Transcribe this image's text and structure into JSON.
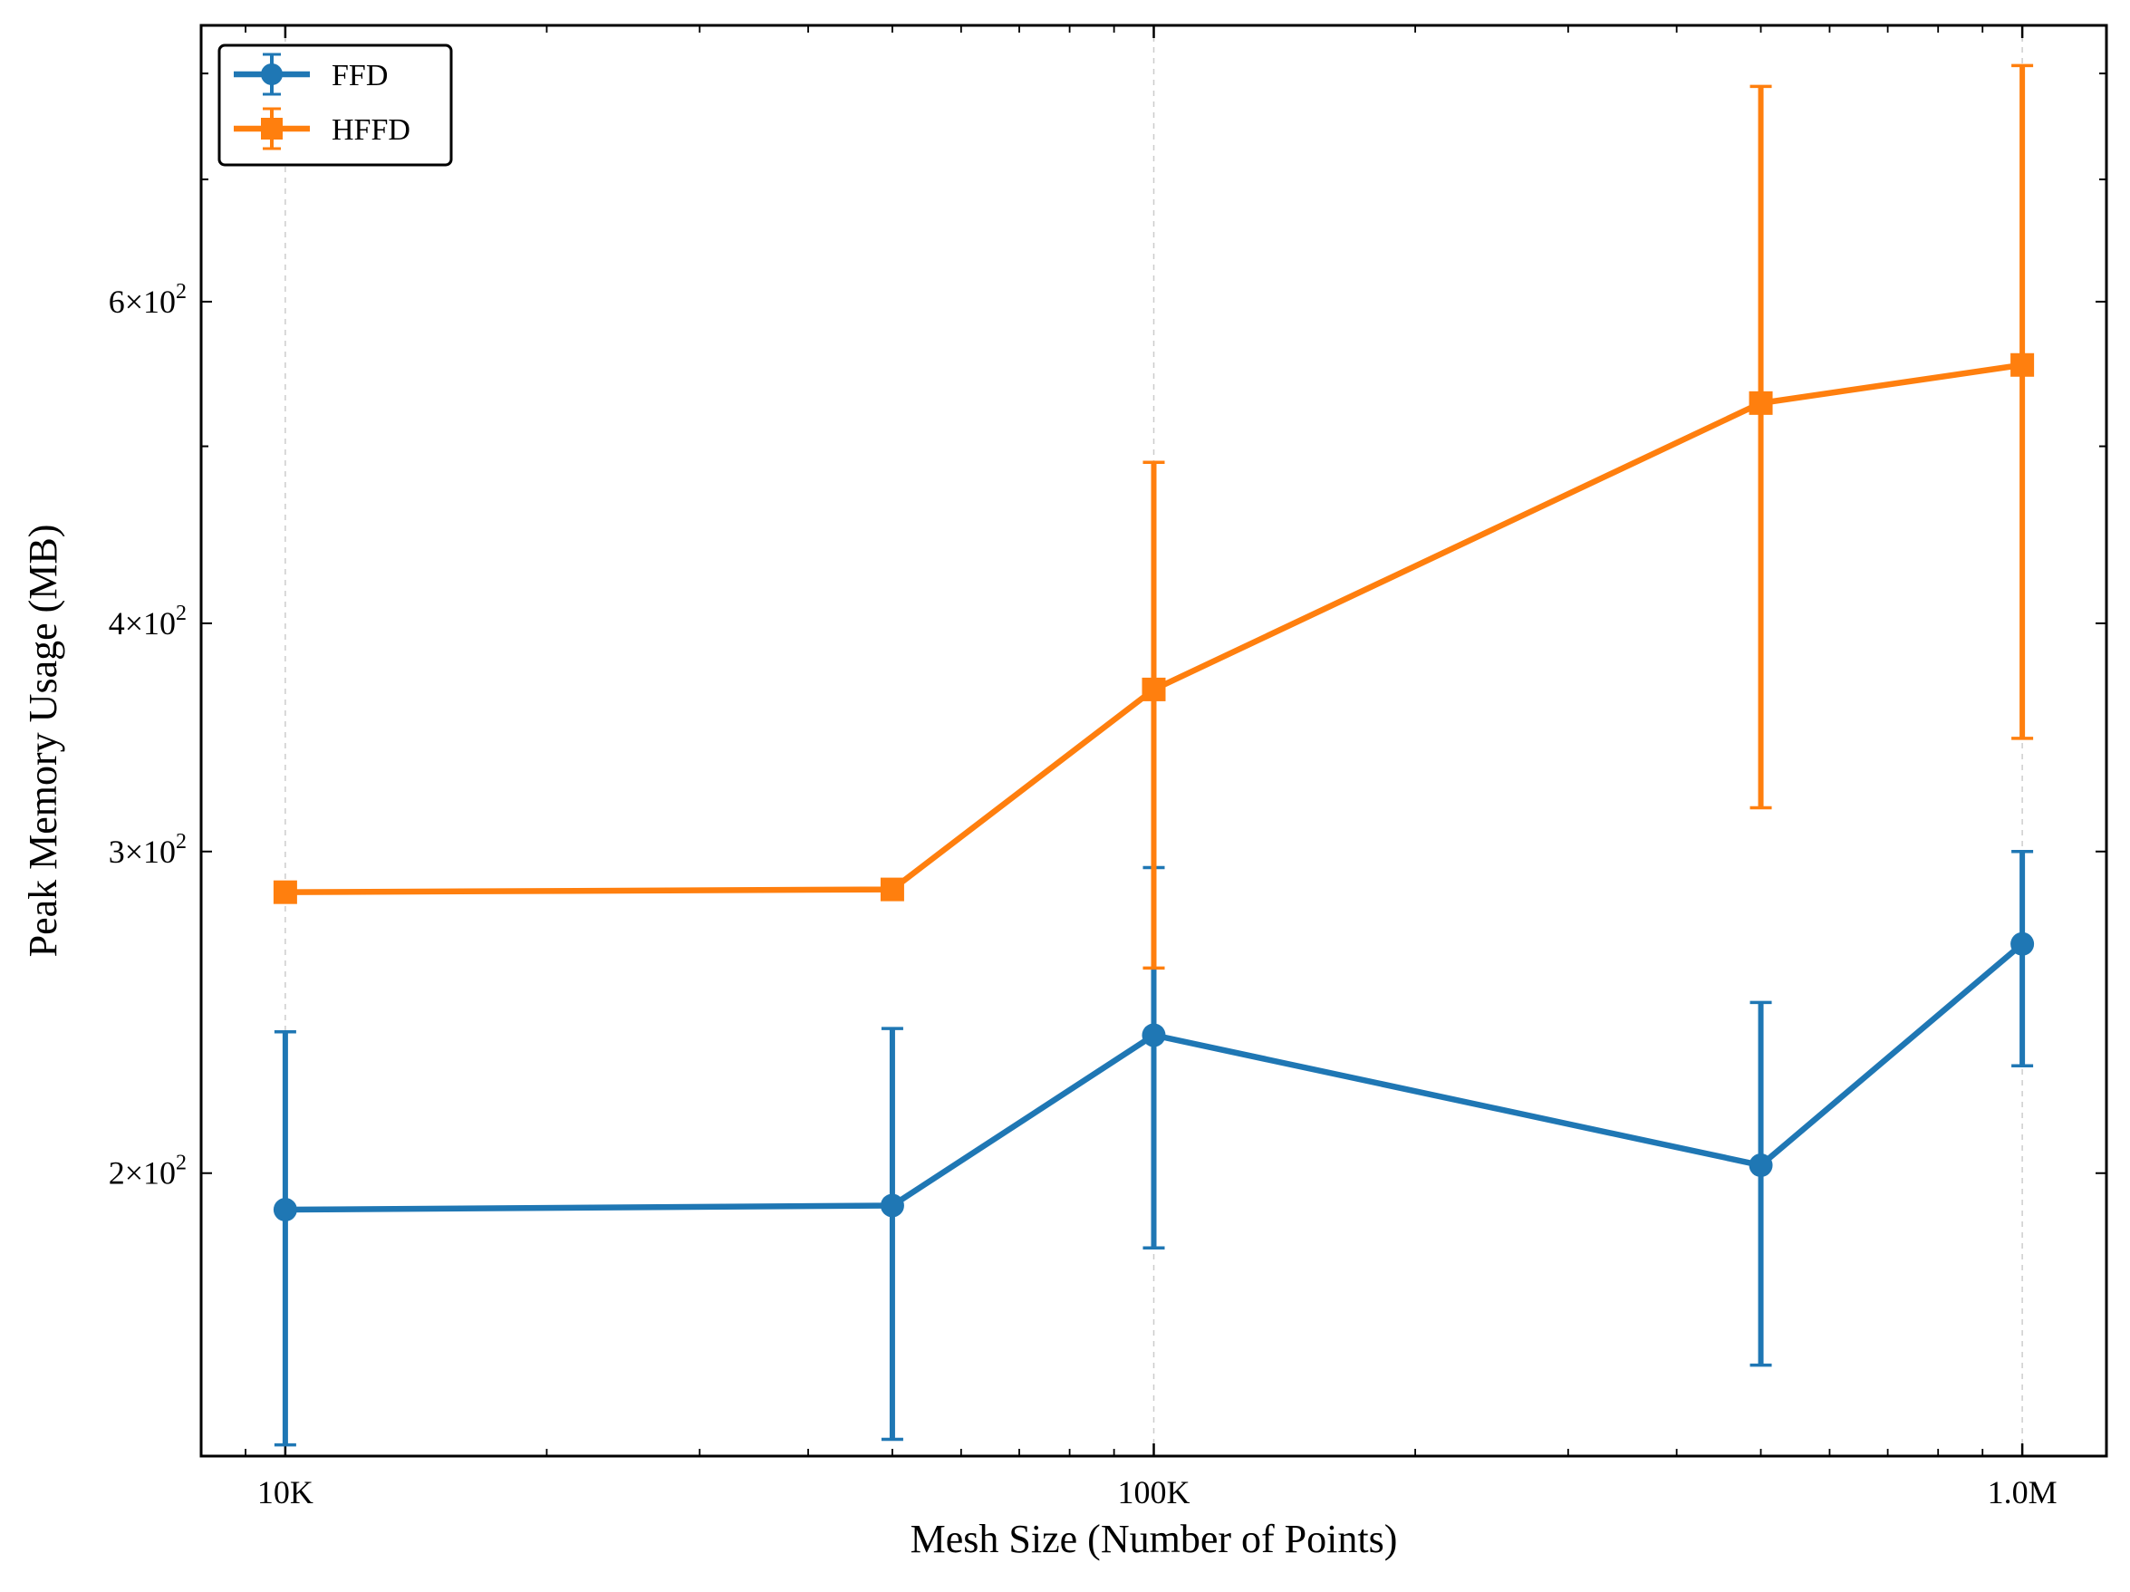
{
  "chart_data": {
    "type": "line",
    "title": "",
    "xlabel": "Mesh Size (Number of Points)",
    "ylabel": "Peak Memory Usage (MB)",
    "xscale": "log",
    "yscale": "log",
    "xlim": [
      8000,
      1250000
    ],
    "ylim": [
      140,
      850
    ],
    "grid": "vertical dashed at major x ticks",
    "legend_position": "top-left",
    "x_major_ticks": [
      {
        "value": 10000,
        "label": "10K"
      },
      {
        "value": 100000,
        "label": "100K"
      },
      {
        "value": 1000000,
        "label": "1.0M"
      }
    ],
    "y_labeled_ticks": [
      {
        "value": 200,
        "base": "2",
        "exp": "2"
      },
      {
        "value": 300,
        "base": "3",
        "exp": "2"
      },
      {
        "value": 400,
        "base": "4",
        "exp": "2"
      },
      {
        "value": 600,
        "base": "6",
        "exp": "2"
      }
    ],
    "x": [
      10000,
      50000,
      100000,
      500000,
      1000000
    ],
    "series": [
      {
        "name": "FFD",
        "color": "#1f77b4",
        "marker": "circle",
        "values": [
          191,
          192,
          238,
          202,
          267
        ],
        "err_low": [
          142,
          143,
          182,
          157,
          229
        ],
        "err_high": [
          239,
          240,
          294,
          248,
          300
        ]
      },
      {
        "name": "HFFD",
        "color": "#ff7f0e",
        "marker": "square",
        "values": [
          285,
          286,
          368,
          528,
          554
        ],
        "err_low": [
          null,
          null,
          259,
          317,
          346
        ],
        "err_high": [
          null,
          null,
          490,
          787,
          808
        ]
      }
    ]
  }
}
